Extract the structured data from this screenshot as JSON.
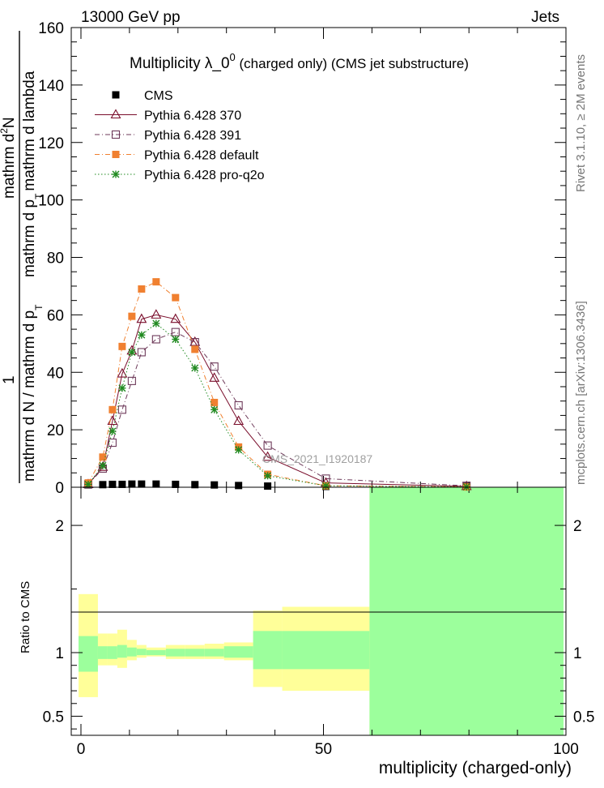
{
  "header": {
    "energy_label": "13000 GeV pp",
    "category_label": "Jets"
  },
  "side_labels": {
    "rivet": "Rivet 3.1.10, ≥ 2M events",
    "mcplots": "mcplots.cern.ch [arXiv:1306.3436]"
  },
  "chart_data": {
    "type": "line",
    "title": "Multiplicity  λ_0⁰ (charged only) (CMS jet substructure)",
    "title_main": "Multiplicity  λ_0",
    "title_sup": "0",
    "title_rest": " (charged only) (CMS jet substructure)",
    "watermark": "CMS_2021_I1920187",
    "xlabel": "multiplicity (charged-only)",
    "ylabel": "1 / (mathrm d N / mathrm d p_T) · mathrm d²N / (mathrm d p_T mathrm d lambda)",
    "ylabel_parts": {
      "numer_top": "1",
      "numer_right_main": "mathrm d",
      "numer_right_sup": "2",
      "numer_right_end": "N",
      "denom_left": "mathrm d N / mathrm d p",
      "denom_left_sub": "T",
      "denom_right_a": "mathrm d p",
      "denom_right_sub": "T",
      "denom_right_b": "mathrm d lambda"
    },
    "xlim": [
      -2,
      100
    ],
    "ylim": [
      0,
      160
    ],
    "x_ticks": [
      0,
      50,
      100
    ],
    "y_ticks": [
      0,
      20,
      40,
      60,
      80,
      100,
      120,
      140,
      160
    ],
    "legend_position": "top-left",
    "series": [
      {
        "name": "CMS",
        "color": "#000000",
        "marker": "filled-square",
        "x": [
          1.5,
          4.5,
          6.5,
          8.5,
          10.5,
          12.5,
          15.5,
          19.5,
          23.5,
          27.5,
          32.5,
          38.5,
          50.5,
          79.5
        ],
        "values": [
          0.8,
          0.9,
          1.0,
          1.0,
          1.1,
          1.1,
          1.1,
          1.0,
          0.9,
          0.8,
          0.6,
          0.4,
          0.1,
          0.02
        ]
      },
      {
        "name": "Pythia 6.428 370",
        "color": "#7a0e2c",
        "marker": "open-triangle",
        "line": "solid",
        "x": [
          1.5,
          4.5,
          6.5,
          8.5,
          10.5,
          12.5,
          15.5,
          19.5,
          23.5,
          27.5,
          32.5,
          38.5,
          50.5,
          79.5
        ],
        "values": [
          1.0,
          7.0,
          23.0,
          39.5,
          47.5,
          58.5,
          60.0,
          58.5,
          50.5,
          38.0,
          23.0,
          10.5,
          1.5,
          0.3
        ]
      },
      {
        "name": "Pythia 6.428 391",
        "color": "#6e3a5a",
        "marker": "open-square",
        "line": "dashdot",
        "x": [
          1.5,
          4.5,
          6.5,
          8.5,
          10.5,
          12.5,
          15.5,
          19.5,
          23.5,
          27.5,
          32.5,
          38.5,
          50.5,
          79.5
        ],
        "values": [
          1.0,
          6.5,
          15.5,
          27.0,
          37.0,
          47.0,
          51.5,
          54.0,
          50.5,
          42.0,
          28.5,
          14.5,
          3.0,
          0.5
        ]
      },
      {
        "name": "Pythia 6.428 default",
        "color": "#f08030",
        "marker": "filled-square",
        "line": "dashdot",
        "x": [
          1.5,
          4.5,
          6.5,
          8.5,
          10.5,
          12.5,
          15.5,
          19.5,
          23.5,
          27.5,
          32.5,
          38.5,
          50.5,
          79.5
        ],
        "values": [
          1.5,
          10.5,
          27.0,
          49.0,
          59.5,
          69.0,
          71.5,
          66.0,
          48.0,
          29.5,
          14.0,
          4.5,
          0.5,
          0.1
        ]
      },
      {
        "name": "Pythia 6.428 pro-q2o",
        "color": "#208a20",
        "marker": "star",
        "line": "dotted",
        "x": [
          1.5,
          4.5,
          6.5,
          8.5,
          10.5,
          12.5,
          15.5,
          19.5,
          23.5,
          27.5,
          32.5,
          38.5,
          50.5,
          79.5
        ],
        "values": [
          1.0,
          7.5,
          19.5,
          34.5,
          47.0,
          53.0,
          57.0,
          51.5,
          41.5,
          27.0,
          13.0,
          4.0,
          0.5,
          0.1
        ]
      }
    ],
    "ratio": {
      "ylabel": "Ratio to CMS",
      "ylim": [
        0.35,
        2.3
      ],
      "y_ticks": [
        0.5,
        1,
        2
      ],
      "y_tick_labels": [
        "0.5",
        "1",
        "2"
      ],
      "bins": [
        {
          "lo": -0.5,
          "hi": 3.5,
          "in_lo": 0.85,
          "in_hi": 1.13,
          "out_lo": 0.65,
          "out_hi": 1.46
        },
        {
          "lo": 3.5,
          "hi": 5.5,
          "in_lo": 0.95,
          "in_hi": 1.05,
          "out_lo": 0.9,
          "out_hi": 1.15
        },
        {
          "lo": 5.5,
          "hi": 7.5,
          "in_lo": 0.95,
          "in_hi": 1.05,
          "out_lo": 0.9,
          "out_hi": 1.15
        },
        {
          "lo": 7.5,
          "hi": 9.5,
          "in_lo": 0.96,
          "in_hi": 1.06,
          "out_lo": 0.88,
          "out_hi": 1.18
        },
        {
          "lo": 9.5,
          "hi": 11.5,
          "in_lo": 0.97,
          "in_hi": 1.04,
          "out_lo": 0.94,
          "out_hi": 1.1
        },
        {
          "lo": 11.5,
          "hi": 13.5,
          "in_lo": 0.98,
          "in_hi": 1.03,
          "out_lo": 0.96,
          "out_hi": 1.06
        },
        {
          "lo": 13.5,
          "hi": 17.5,
          "in_lo": 0.98,
          "in_hi": 1.02,
          "out_lo": 0.97,
          "out_hi": 1.04
        },
        {
          "lo": 17.5,
          "hi": 21.5,
          "in_lo": 0.97,
          "in_hi": 1.03,
          "out_lo": 0.95,
          "out_hi": 1.06
        },
        {
          "lo": 21.5,
          "hi": 25.5,
          "in_lo": 0.97,
          "in_hi": 1.03,
          "out_lo": 0.95,
          "out_hi": 1.06
        },
        {
          "lo": 25.5,
          "hi": 29.5,
          "in_lo": 0.97,
          "in_hi": 1.03,
          "out_lo": 0.95,
          "out_hi": 1.07
        },
        {
          "lo": 29.5,
          "hi": 35.5,
          "in_lo": 0.96,
          "in_hi": 1.05,
          "out_lo": 0.94,
          "out_hi": 1.08
        },
        {
          "lo": 35.5,
          "hi": 41.5,
          "in_lo": 0.87,
          "in_hi": 1.17,
          "out_lo": 0.73,
          "out_hi": 1.33
        },
        {
          "lo": 41.5,
          "hi": 59.5,
          "in_lo": 0.87,
          "in_hi": 1.17,
          "out_lo": 0.7,
          "out_hi": 1.36
        },
        {
          "lo": 59.5,
          "hi": 99.5,
          "in_lo": 0.35,
          "in_hi": 2.3,
          "out_lo": 0.35,
          "out_hi": 2.3
        }
      ]
    }
  },
  "colors": {
    "band_inner": "#9cff9c",
    "band_outer": "#ffff99"
  }
}
